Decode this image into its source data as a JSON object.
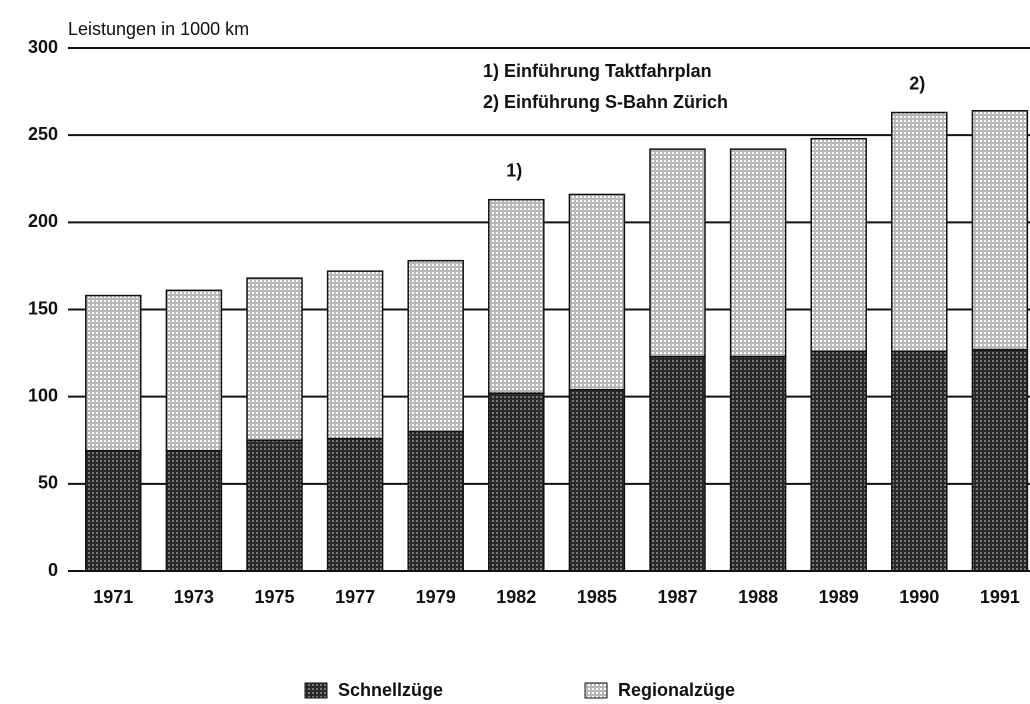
{
  "chart_data": {
    "type": "stacked-bar",
    "y_label": "Leistungen in 1000 km",
    "categories": [
      "1971",
      "1973",
      "1975",
      "1977",
      "1979",
      "1982",
      "1985",
      "1987",
      "1988",
      "1989",
      "1990",
      "1991"
    ],
    "series": [
      {
        "name": "Schnellzüge",
        "color": "#2a2a2a",
        "values": [
          69,
          69,
          75,
          76,
          80,
          102,
          104,
          123,
          123,
          126,
          126,
          127
        ]
      },
      {
        "name": "Regionalzüge",
        "color": "#b8b8b8",
        "values": [
          89,
          92,
          93,
          96,
          98,
          111,
          112,
          119,
          119,
          122,
          137,
          137
        ]
      }
    ],
    "ylim": [
      0,
      300
    ],
    "yticks": [
      0,
      50,
      100,
      150,
      200,
      250,
      300
    ],
    "grid": true,
    "annotations": [
      {
        "text": "1)",
        "x": "1982"
      },
      {
        "text": "2)",
        "x": "1990"
      }
    ],
    "notes": [
      "1) Einführung Taktfahrplan",
      "2) Einführung S-Bahn Zürich"
    ],
    "legend": "bottom"
  }
}
